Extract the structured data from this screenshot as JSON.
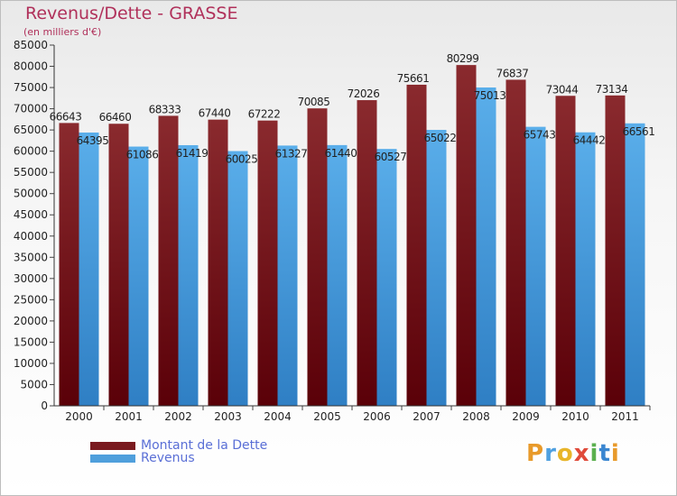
{
  "chart_data": {
    "type": "bar",
    "title": "Revenus/Dette - GRASSE",
    "subtitle": "(en milliers d'€)",
    "categories": [
      "2000",
      "2001",
      "2002",
      "2003",
      "2004",
      "2005",
      "2006",
      "2007",
      "2008",
      "2009",
      "2010",
      "2011"
    ],
    "series": [
      {
        "name": "Montant de la Dette",
        "color": "#7a1a1f",
        "values": [
          66643,
          66460,
          68333,
          67440,
          67222,
          70085,
          72026,
          75661,
          80299,
          76837,
          73044,
          73134
        ]
      },
      {
        "name": "Revenus",
        "color": "#4f9fdc",
        "values": [
          64395,
          61086,
          61419,
          60025,
          61327,
          61440,
          60527,
          65022,
          75013,
          65743,
          64442,
          66561
        ]
      }
    ],
    "ylim": [
      0,
      85000
    ],
    "ytick_step": 5000,
    "xlabel": "",
    "ylabel": "",
    "grid": false,
    "legend": "bottom-left"
  },
  "branding": {
    "logo_text": "Proxiti"
  }
}
